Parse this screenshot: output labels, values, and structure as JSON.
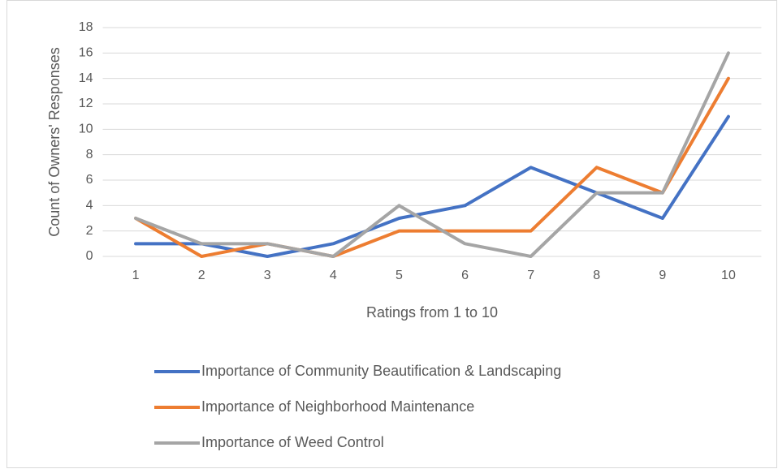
{
  "chart_data": {
    "type": "line",
    "x_label": "Ratings from 1 to 10",
    "y_label": "Count of Owners' Responses",
    "categories": [
      1,
      2,
      3,
      4,
      5,
      6,
      7,
      8,
      9,
      10
    ],
    "series": [
      {
        "name": "Importance of Community Beautification & Landscaping",
        "color": "#4472c4",
        "values": [
          1,
          1,
          0,
          1,
          3,
          4,
          7,
          5,
          3,
          11
        ]
      },
      {
        "name": "Importance of Neighborhood Maintenance",
        "color": "#ed7d31",
        "values": [
          3,
          0,
          1,
          0,
          2,
          2,
          2,
          7,
          5,
          14
        ]
      },
      {
        "name": "Importance of Weed Control",
        "color": "#a5a5a5",
        "values": [
          3,
          1,
          1,
          0,
          4,
          1,
          0,
          5,
          5,
          16
        ]
      }
    ],
    "ylim": [
      0,
      18
    ],
    "yticks": [
      0,
      2,
      4,
      6,
      8,
      10,
      12,
      14,
      16,
      18
    ],
    "grid": true,
    "legend": "bottom"
  }
}
